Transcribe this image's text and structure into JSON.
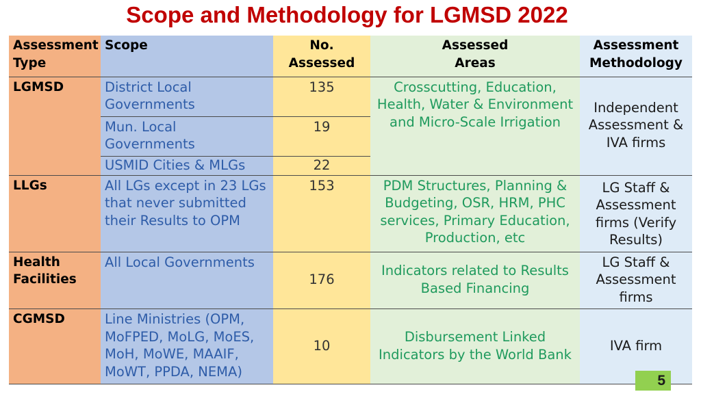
{
  "title": "Scope and Methodology for LGMSD 2022",
  "header": {
    "type_line1": "Assessment",
    "type_line2": "Type",
    "scope": "Scope",
    "num_line1": "No.",
    "num_line2": "Assessed",
    "areas_line1": "Assessed",
    "areas_line2": "Areas",
    "method_line1": "Assessment",
    "method_line2": "Methodology"
  },
  "rows": {
    "lgmsd": {
      "type": "LGMSD",
      "scope_1": "District Local Governments",
      "num_1": "135",
      "scope_2": "Mun. Local Governments",
      "num_2": "19",
      "scope_3": "USMID Cities & MLGs",
      "num_3": "22",
      "areas": "Crosscutting, Education, Health, Water & Environment and Micro-Scale Irrigation",
      "method": "Independent Assessment & IVA firms"
    },
    "llgs": {
      "type": "LLGs",
      "scope": "All LGs except in 23 LGs that never submitted their Results to OPM",
      "num": "153",
      "areas": "PDM Structures, Planning & Budgeting, OSR, HRM, PHC services, Primary Education, Production, etc",
      "method": "LG Staff & Assessment firms (Verify Results)"
    },
    "health": {
      "type": "Health Facilities",
      "scope": "All Local Governments",
      "num": "176",
      "areas": "Indicators related to Results Based Financing",
      "method": "LG Staff & Assessment firms"
    },
    "cgmsd": {
      "type": "CGMSD",
      "scope": "Line Ministries (OPM, MoFPED, MoLG, MoES, MoH, MoWE, MAAIF, MoWT, PPDA, NEMA)",
      "num": "10",
      "areas": "Disbursement Linked Indicators by the World Bank",
      "method": "IVA firm"
    }
  },
  "page_number": "5"
}
